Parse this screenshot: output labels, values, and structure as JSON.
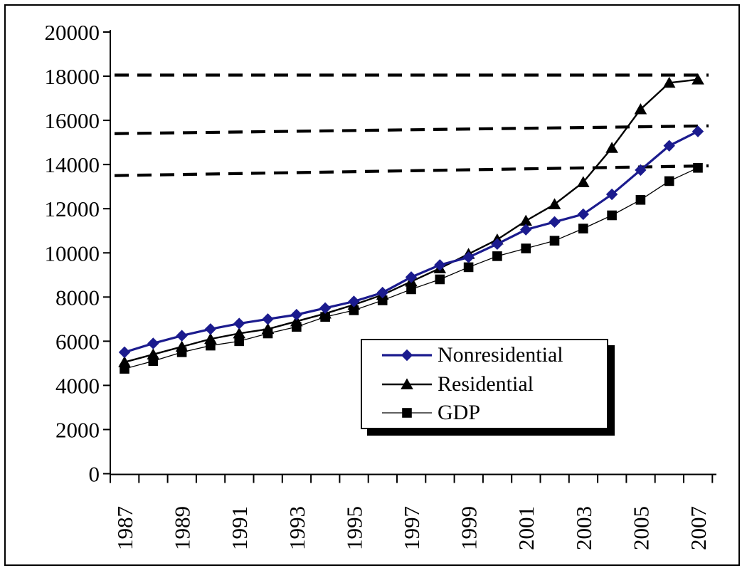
{
  "figure": {
    "background_color": "#ffffff",
    "border_color": "#000000"
  },
  "chart_data": {
    "type": "line",
    "title": "",
    "xlabel": "",
    "ylabel": "",
    "grid": false,
    "x": [
      1987,
      1988,
      1989,
      1990,
      1991,
      1992,
      1993,
      1994,
      1995,
      1996,
      1997,
      1998,
      1999,
      2000,
      2001,
      2002,
      2003,
      2004,
      2005,
      2006,
      2007
    ],
    "series": [
      {
        "name": "Nonresidential",
        "marker": "diamond",
        "color": "#1b1b8e",
        "values": [
          5500,
          5900,
          6250,
          6550,
          6800,
          7000,
          7200,
          7500,
          7800,
          8200,
          8900,
          9450,
          9800,
          10400,
          11050,
          11400,
          11750,
          12650,
          13750,
          14850,
          15500
        ]
      },
      {
        "name": "Residential",
        "marker": "triangle",
        "color": "#000000",
        "values": [
          5050,
          5400,
          5750,
          6100,
          6350,
          6550,
          6900,
          7250,
          7650,
          8100,
          8700,
          9300,
          9950,
          10600,
          11450,
          12200,
          13200,
          14750,
          16500,
          17700,
          17850
        ]
      },
      {
        "name": "GDP",
        "marker": "square",
        "color": "#000000",
        "values": [
          4750,
          5100,
          5500,
          5800,
          6000,
          6350,
          6650,
          7100,
          7400,
          7850,
          8350,
          8800,
          9350,
          9850,
          10200,
          10550,
          11100,
          11700,
          12400,
          13250,
          13850
        ]
      }
    ],
    "reference_lines": [
      {
        "style": "dashed",
        "color": "#000000",
        "y_start": 18050,
        "y_end": 18050
      },
      {
        "style": "dashed",
        "color": "#000000",
        "y_start": 15400,
        "y_end": 15750
      },
      {
        "style": "dashed",
        "color": "#000000",
        "y_start": 13500,
        "y_end": 13940
      }
    ],
    "ylim": [
      0,
      20000
    ],
    "ytick_step": 2000,
    "yticks": [
      0,
      2000,
      4000,
      6000,
      8000,
      10000,
      12000,
      14000,
      16000,
      18000,
      20000
    ],
    "xtick_labels": [
      "1987",
      "1989",
      "1991",
      "1993",
      "1995",
      "1997",
      "1999",
      "2001",
      "2003",
      "2005",
      "2007"
    ],
    "legend_position": "inside-center-right"
  },
  "legend": {
    "items": [
      {
        "label": "Nonresidential"
      },
      {
        "label": "Residential"
      },
      {
        "label": "GDP"
      }
    ]
  }
}
